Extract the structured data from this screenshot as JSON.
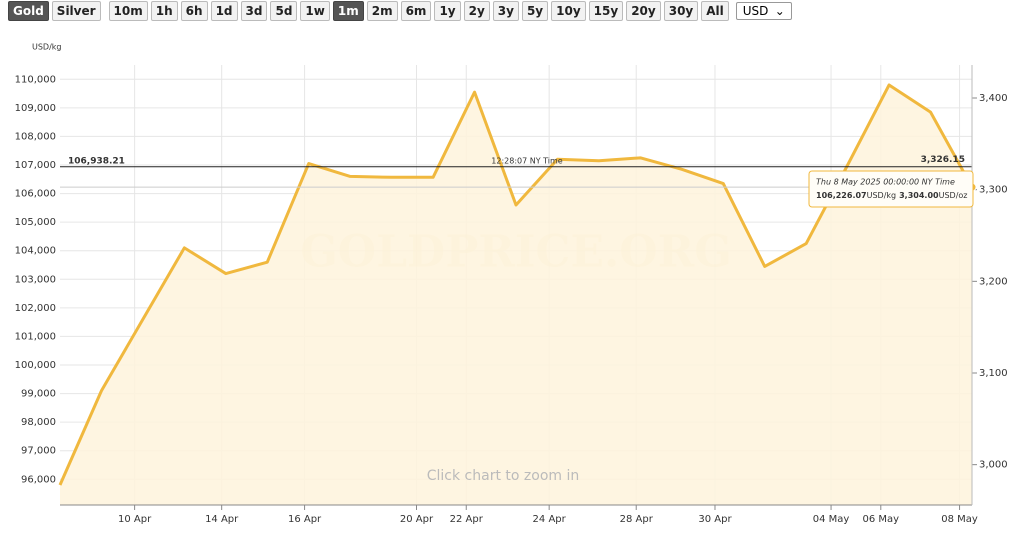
{
  "toolbar": {
    "metals": [
      "Gold",
      "Silver"
    ],
    "active_metal": "Gold",
    "ranges": [
      "10m",
      "1h",
      "6h",
      "1d",
      "3d",
      "5d",
      "1w",
      "1m",
      "2m",
      "6m",
      "1y",
      "2y",
      "3y",
      "5y",
      "10y",
      "15y",
      "20y",
      "30y",
      "All"
    ],
    "active_range": "1m",
    "currency": "USD"
  },
  "chart_data": {
    "type": "line",
    "ylabel": "USD/kg",
    "color": "#f0b83e",
    "fill": "#fef3dc",
    "grid": true,
    "values": [
      95800,
      99100,
      101600,
      104100,
      103200,
      103600,
      107050,
      106600,
      106570,
      106570,
      109550,
      105600,
      107200,
      107150,
      107250,
      106850,
      106350,
      103450,
      104250,
      107000,
      109800,
      108850,
      106226.07
    ],
    "xlim": [
      0,
      22
    ],
    "xticks": [
      {
        "value": 1.8,
        "label": "10 Apr"
      },
      {
        "value": 3.9,
        "label": "14 Apr"
      },
      {
        "value": 5.9,
        "label": "16 Apr"
      },
      {
        "value": 8.6,
        "label": "20 Apr"
      },
      {
        "value": 9.8,
        "label": "22 Apr"
      },
      {
        "value": 11.8,
        "label": "24 Apr"
      },
      {
        "value": 13.9,
        "label": "28 Apr"
      },
      {
        "value": 15.8,
        "label": "30 Apr"
      },
      {
        "value": 18.6,
        "label": "04 May"
      },
      {
        "value": 19.8,
        "label": "06 May"
      },
      {
        "value": 21.7,
        "label": "08 May"
      }
    ],
    "ylim": [
      95100,
      110500
    ],
    "yticks": [
      {
        "value": 96000,
        "label": "96,000"
      },
      {
        "value": 97000,
        "label": "97,000"
      },
      {
        "value": 98000,
        "label": "98,000"
      },
      {
        "value": 99000,
        "label": "99,000"
      },
      {
        "value": 100000,
        "label": "100,000"
      },
      {
        "value": 101000,
        "label": "101,000"
      },
      {
        "value": 102000,
        "label": "102,000"
      },
      {
        "value": 103000,
        "label": "103,000"
      },
      {
        "value": 104000,
        "label": "104,000"
      },
      {
        "value": 105000,
        "label": "105,000"
      },
      {
        "value": 106000,
        "label": "106,000"
      },
      {
        "value": 107000,
        "label": "107,000"
      },
      {
        "value": 108000,
        "label": "108,000"
      },
      {
        "value": 109000,
        "label": "109,000"
      },
      {
        "value": 110000,
        "label": "110,000"
      }
    ],
    "y2lim": [
      2956,
      3436
    ],
    "y2ticks": [
      {
        "value": 3000,
        "label": "3,000"
      },
      {
        "value": 3100,
        "label": "3,100"
      },
      {
        "value": 3200,
        "label": "3,200"
      },
      {
        "value": 3300,
        "label": "3,300"
      },
      {
        "value": 3400,
        "label": "3,400"
      }
    ],
    "price_line": {
      "value": 106938.21,
      "label": "106,938.21",
      "time": "12:28:07 NY Time",
      "value_oz": 3326.15,
      "value_oz_label": "3,326.15"
    },
    "tooltip": {
      "date": "Thu 8 May 2025 00:00:00 NY Time",
      "kg": "106,226.07",
      "kg_unit": "USD/kg",
      "oz": "3,304.00",
      "oz_unit": "USD/oz"
    },
    "watermark": "GOLDPRICE.ORG",
    "hint": "Click chart to zoom in"
  }
}
